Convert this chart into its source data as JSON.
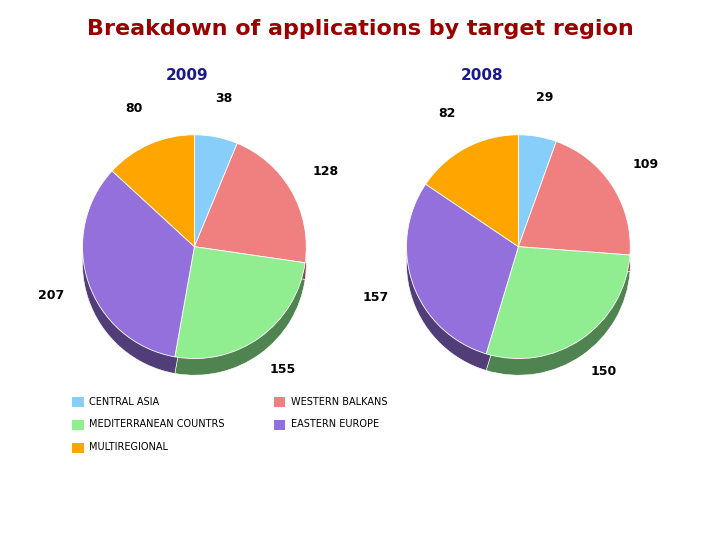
{
  "title": "Breakdown of applications by target region",
  "title_color": "#990000",
  "year_2009": "2009",
  "year_2008": "2008",
  "year_color": "#1a1a8c",
  "categories": [
    "CENTRAL ASIA",
    "WESTERN BALKANS",
    "MEDITERRANEAN COUNTRS",
    "EASTERN EUROPE",
    "MULTIREGIONAL"
  ],
  "colors": [
    "#87CEFA",
    "#F08080",
    "#90EE90",
    "#9370DB",
    "#FFA500"
  ],
  "edge_colors": [
    "#4682B4",
    "#8B2222",
    "#2E8B57",
    "#4B0082",
    "#8B4500"
  ],
  "values_2009": [
    38,
    128,
    155,
    207,
    80
  ],
  "values_2008": [
    29,
    109,
    150,
    157,
    82
  ],
  "bg_color": "#FFFFFF",
  "legend_fontsize": 7,
  "label_fontsize": 9,
  "year_fontsize": 11,
  "title_fontsize": 16
}
